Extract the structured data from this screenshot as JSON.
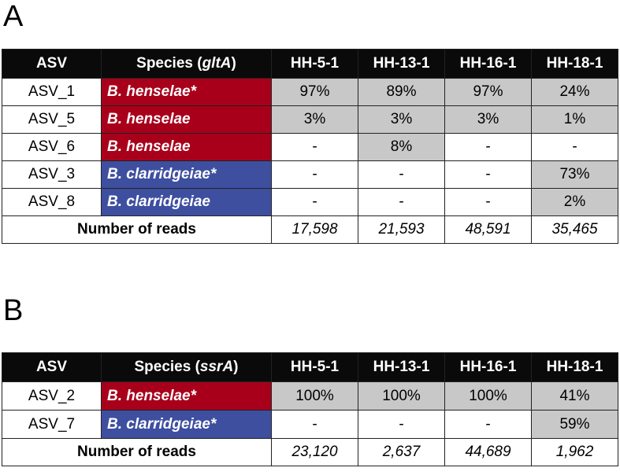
{
  "panelA": {
    "label": "A",
    "header": {
      "asv": "ASV",
      "species_prefix": "Species (",
      "species_gene": "gltA",
      "species_suffix": ")",
      "samples": [
        "HH-5-1",
        "HH-13-1",
        "HH-16-1",
        "HH-18-1"
      ]
    },
    "rows": [
      {
        "asv": "ASV_1",
        "species": "B. henselae*",
        "group": "henselae",
        "values": [
          "97%",
          "89%",
          "97%",
          "24%"
        ]
      },
      {
        "asv": "ASV_5",
        "species": "B. henselae",
        "group": "henselae",
        "values": [
          "3%",
          "3%",
          "3%",
          "1%"
        ]
      },
      {
        "asv": "ASV_6",
        "species": "B. henselae",
        "group": "henselae",
        "values": [
          "-",
          "8%",
          "-",
          "-"
        ]
      },
      {
        "asv": "ASV_3",
        "species": "B. clarridgeiae*",
        "group": "clarridgeiae",
        "values": [
          "-",
          "-",
          "-",
          "73%"
        ]
      },
      {
        "asv": "ASV_8",
        "species": "B. clarridgeiae",
        "group": "clarridgeiae",
        "values": [
          "-",
          "-",
          "-",
          "2%"
        ]
      }
    ],
    "footer": {
      "label": "Number of reads",
      "reads": [
        "17,598",
        "21,593",
        "48,591",
        "35,465"
      ]
    }
  },
  "panelB": {
    "label": "B",
    "header": {
      "asv": "ASV",
      "species_prefix": "Species (",
      "species_gene": "ssrA",
      "species_suffix": ")",
      "samples": [
        "HH-5-1",
        "HH-13-1",
        "HH-16-1",
        "HH-18-1"
      ]
    },
    "rows": [
      {
        "asv": "ASV_2",
        "species": "B. henselae*",
        "group": "henselae",
        "values": [
          "100%",
          "100%",
          "100%",
          "41%"
        ]
      },
      {
        "asv": "ASV_7",
        "species": "B. clarridgeiae*",
        "group": "clarridgeiae",
        "values": [
          "-",
          "-",
          "-",
          "59%"
        ]
      }
    ],
    "footer": {
      "label": "Number of reads",
      "reads": [
        "23,120",
        "2,637",
        "44,689",
        "1,962"
      ]
    }
  },
  "colors": {
    "henselae": "#a8001a",
    "clarridgeiae": "#3e4fa0",
    "present": "#c8c8c8",
    "header": "#0a0a0a"
  }
}
